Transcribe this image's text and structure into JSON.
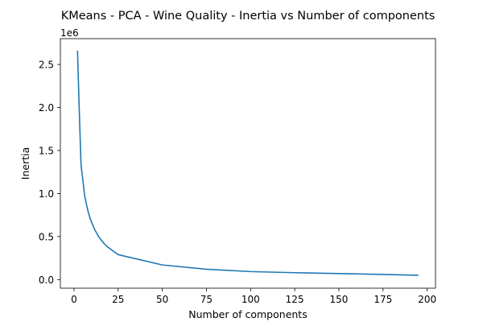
{
  "chart_data": {
    "type": "line",
    "title": "KMeans - PCA - Wine Quality - Inertia vs Number of components",
    "xlabel": "Number of components",
    "ylabel": "Inertia",
    "y_offset_label": "1e6",
    "y_scale_factor": 1000000,
    "xlim": [
      -7.7,
      204.7
    ],
    "ylim": [
      -0.1,
      2.8
    ],
    "grid": false,
    "line_color": "#1f77b4",
    "x_ticks": [
      0,
      25,
      50,
      75,
      100,
      125,
      150,
      175,
      200
    ],
    "x_tick_labels": [
      "0",
      "25",
      "50",
      "75",
      "100",
      "125",
      "150",
      "175",
      "200"
    ],
    "y_ticks": [
      0.0,
      0.5,
      1.0,
      1.5,
      2.0,
      2.5
    ],
    "y_tick_labels": [
      "0.0",
      "0.5",
      "1.0",
      "1.5",
      "2.0",
      "2.5"
    ],
    "series": [
      {
        "x": [
          2,
          3,
          4,
          5,
          6,
          7,
          8,
          9,
          10,
          11,
          12,
          13,
          14,
          15,
          16,
          17,
          18,
          19,
          20,
          21,
          22,
          23,
          24,
          25,
          50,
          75,
          100,
          125,
          150,
          175,
          195
        ],
        "values": [
          2.66,
          1.96,
          1.33,
          1.16,
          0.98,
          0.88,
          0.79,
          0.72,
          0.665,
          0.615,
          0.57,
          0.535,
          0.5,
          0.47,
          0.445,
          0.42,
          0.4,
          0.38,
          0.365,
          0.35,
          0.335,
          0.32,
          0.305,
          0.29,
          0.17,
          0.12,
          0.093,
          0.08,
          0.07,
          0.06,
          0.05
        ]
      }
    ]
  }
}
